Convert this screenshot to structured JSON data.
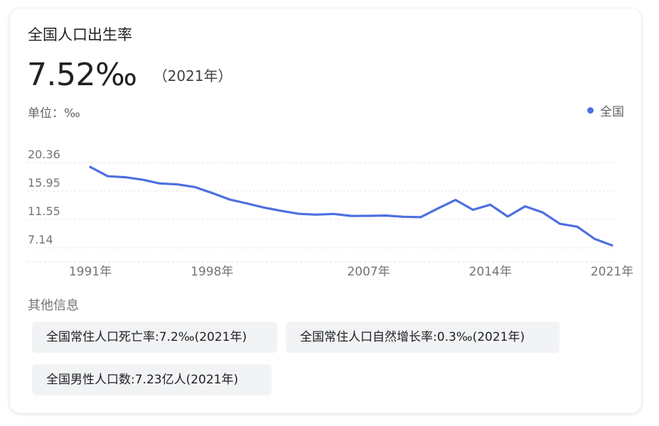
{
  "card": {
    "title": "全国人口出生率",
    "value": "7.52‰",
    "year_note": "（2021年）",
    "unit_label": "单位：‰"
  },
  "legend": {
    "label": "全国",
    "color": "#4e6fe0"
  },
  "chart_data": {
    "type": "line",
    "title": "",
    "xlabel": "",
    "ylabel": "",
    "y_ticks": [
      "20.36",
      "15.95",
      "11.55",
      "7.14"
    ],
    "y_tick_values": [
      20.36,
      15.95,
      11.55,
      7.14
    ],
    "x_ticks": [
      "1991年",
      "1998年",
      "2007年",
      "2014年",
      "2021年"
    ],
    "x_tick_values": [
      1991,
      1998,
      2007,
      2014,
      2021
    ],
    "xlim": [
      1991,
      2021
    ],
    "ylim": [
      3.0,
      20.36
    ],
    "grid": "horizontal-dashed",
    "series": [
      {
        "name": "全国",
        "color": "#4e6fe0",
        "x": [
          1991,
          1992,
          1993,
          1994,
          1995,
          1996,
          1997,
          1998,
          1999,
          2000,
          2001,
          2002,
          2003,
          2004,
          2005,
          2006,
          2007,
          2008,
          2009,
          2010,
          2011,
          2012,
          2013,
          2014,
          2015,
          2016,
          2017,
          2018,
          2019,
          2020,
          2021
        ],
        "values": [
          19.68,
          18.24,
          18.09,
          17.7,
          17.12,
          16.98,
          16.57,
          15.64,
          14.64,
          14.03,
          13.38,
          12.86,
          12.41,
          12.29,
          12.4,
          12.09,
          12.1,
          12.14,
          11.95,
          11.9,
          13.27,
          14.57,
          13.03,
          13.83,
          11.99,
          13.57,
          12.64,
          10.86,
          10.41,
          8.52,
          7.52
        ]
      }
    ]
  },
  "other_info": {
    "title": "其他信息",
    "chips": [
      "全国常住人口死亡率:7.2‰(2021年)",
      "全国常住人口自然增长率:0.3‰(2021年)",
      "全国男性人口数:7.23亿人(2021年)"
    ]
  }
}
